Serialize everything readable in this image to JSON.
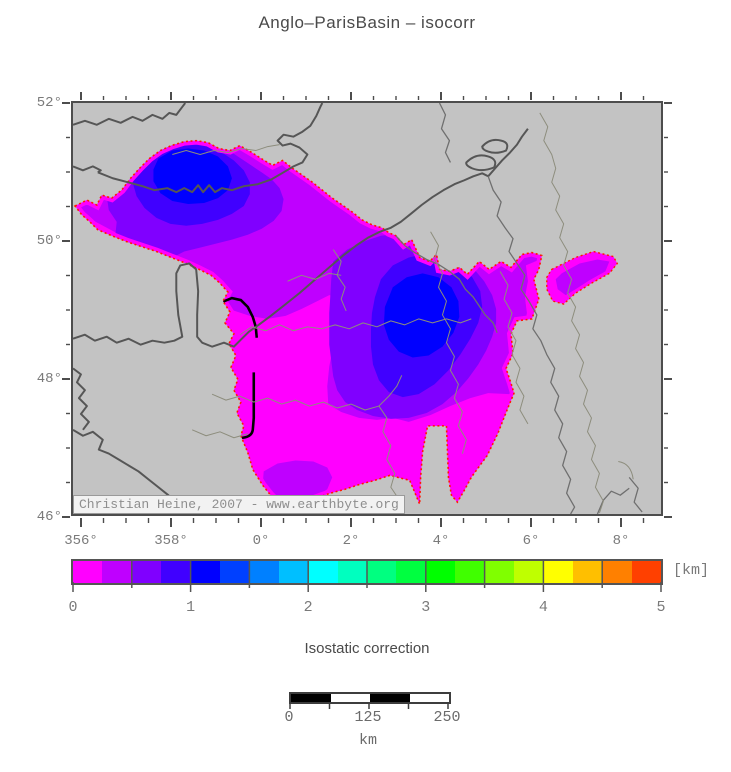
{
  "title": "Anglo–ParisBasin – isocorr",
  "map": {
    "x_tick_labels": [
      "356°",
      "358°",
      "0°",
      "2°",
      "4°",
      "6°",
      "8°"
    ],
    "y_tick_labels": [
      "52°",
      "50°",
      "48°",
      "46°"
    ],
    "attribution": "Christian Heine, 2007 - www.earthbyte.org",
    "colors": {
      "land": "#c3c3c3",
      "coastline": "#565656",
      "border": "#6f6f6f",
      "river": "#8d8d7d",
      "frame": "#4d4d4d",
      "basin_boundary_dots": "#ff1a00",
      "zero_contour_line": "#000000"
    }
  },
  "colorbar": {
    "caption": "Isostatic correction",
    "unit_label": "[km]",
    "tick_labels": [
      "0",
      "1",
      "2",
      "3",
      "4",
      "5"
    ],
    "value_min_km": 0,
    "value_max_km": 5,
    "cell_interval_km": 0.25,
    "cell_colors": [
      "#ff00ff",
      "#bf00ff",
      "#8000ff",
      "#4000ff",
      "#0000ff",
      "#0040ff",
      "#0080ff",
      "#00bfff",
      "#00ffff",
      "#00ffbf",
      "#00ff80",
      "#00ff40",
      "#00ff00",
      "#40ff00",
      "#80ff00",
      "#bfff00",
      "#ffff00",
      "#ffbf00",
      "#ff8000",
      "#ff4000"
    ],
    "basin_fill_levels_km": [
      "0-0.25",
      "0.25-0.5",
      "0.5-0.75",
      "0.75-1.0",
      "1.0-1.25"
    ]
  },
  "scale_bar": {
    "tick_labels": [
      "0",
      "125",
      "250"
    ],
    "unit_label": "km",
    "segment_colors": [
      "#000000",
      "#ffffff",
      "#000000",
      "#ffffff"
    ]
  }
}
